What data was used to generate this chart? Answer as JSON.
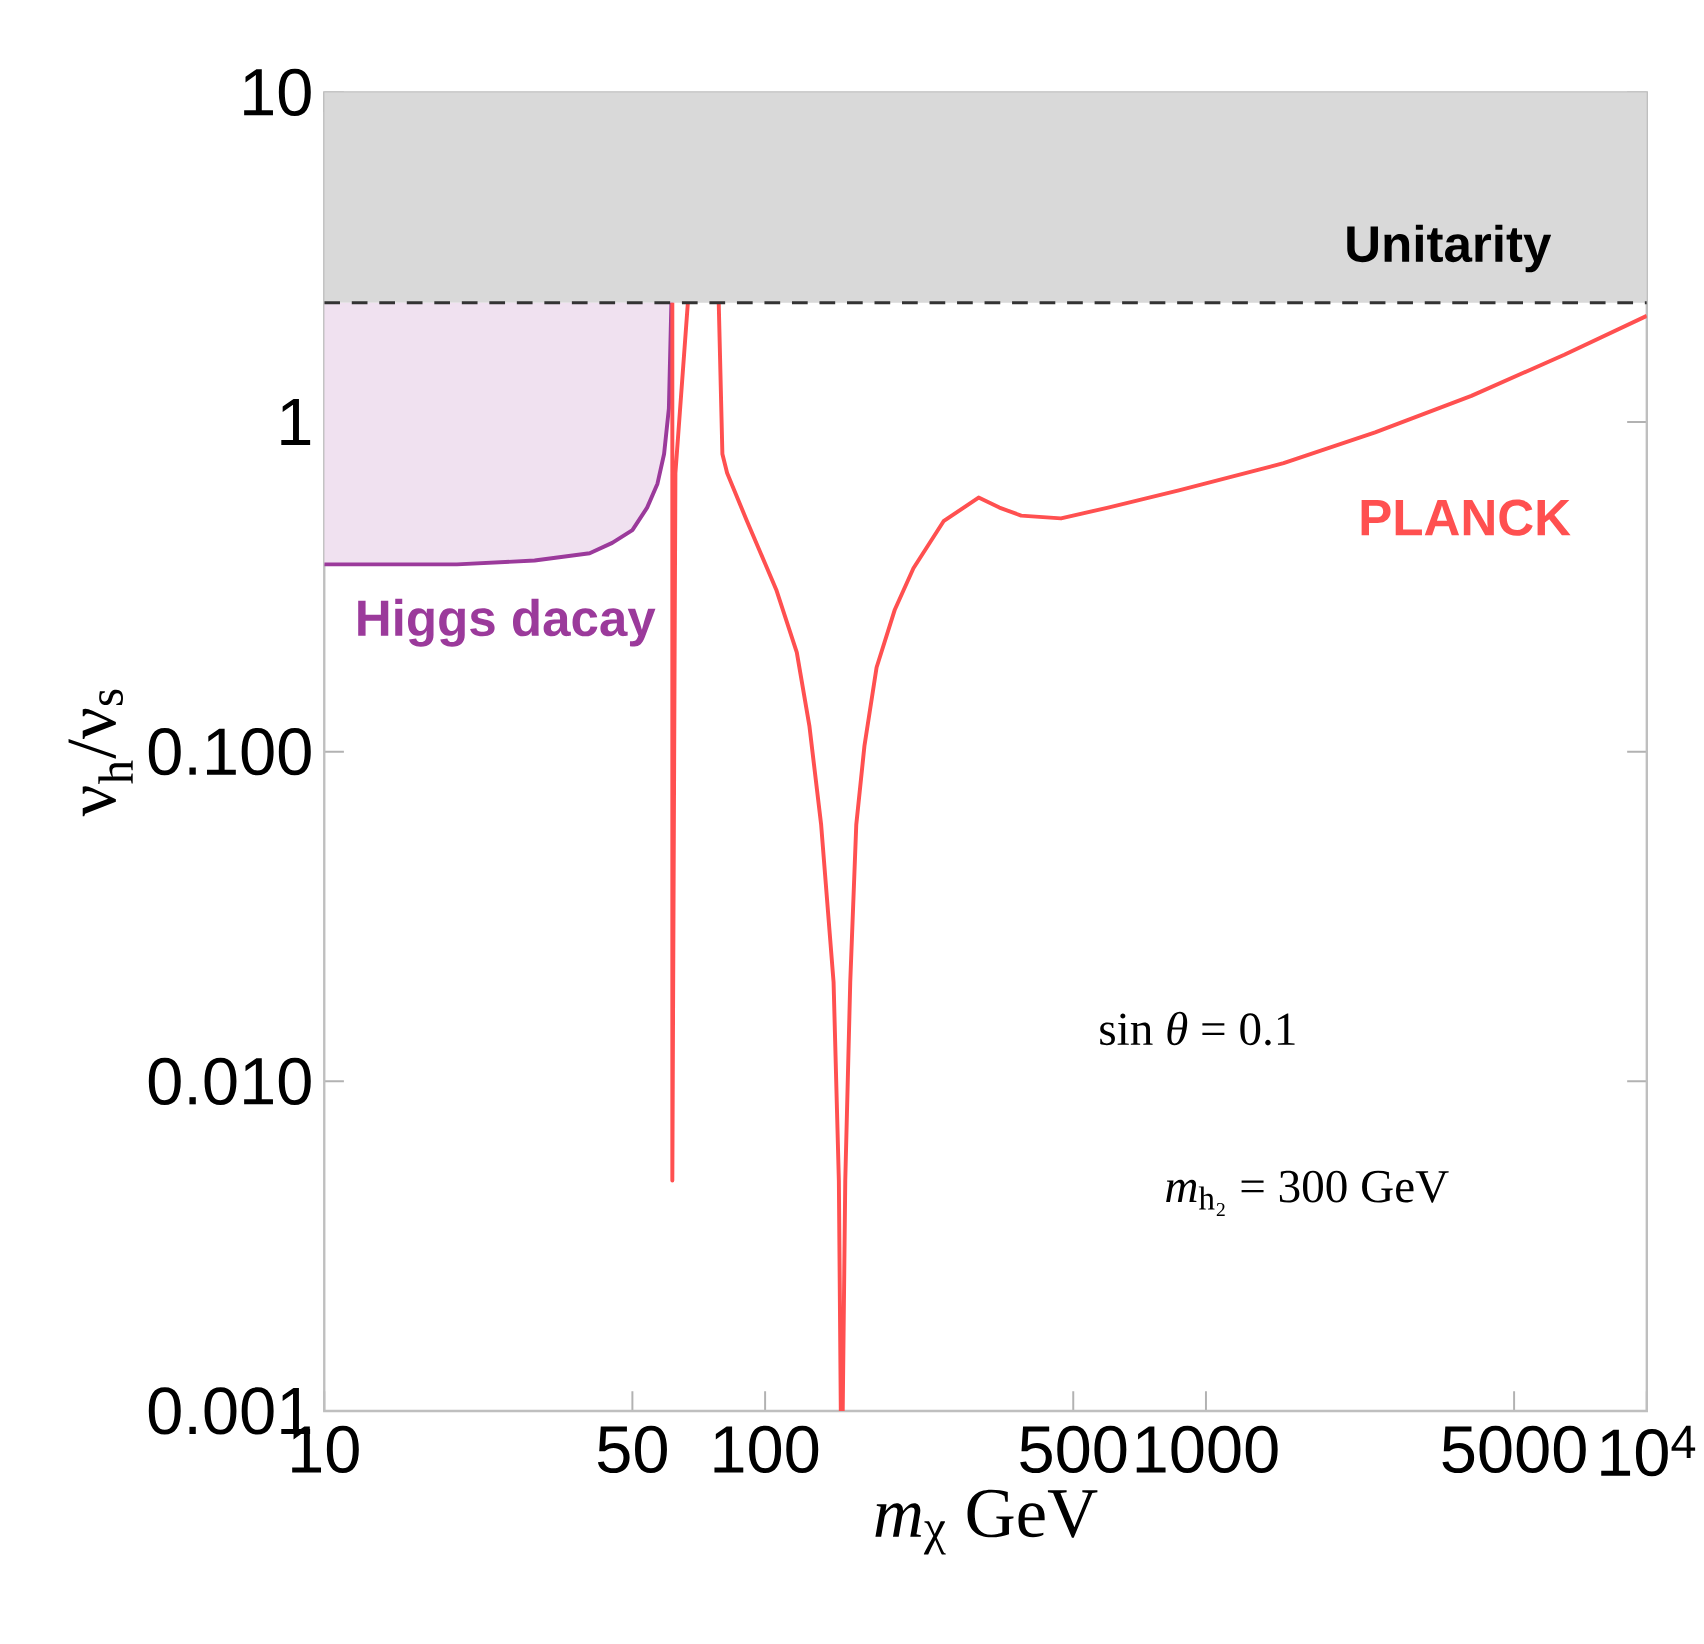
{
  "chart_data": {
    "type": "line",
    "xlabel": "*m*$_{χ}$ GeV",
    "ylabel": "ν$_{h}$/ν$_{s}$",
    "log": "xy",
    "xlim": [
      10,
      10000
    ],
    "ylim": [
      0.001,
      10
    ],
    "xticks": [
      10,
      50,
      100,
      500,
      1000,
      5000,
      {
        "value": 10000,
        "label": "10$^{4}$"
      }
    ],
    "yticks": [
      {
        "value": 0.001,
        "label": "0.001"
      },
      {
        "value": 0.01,
        "label": "0.010"
      },
      {
        "value": 0.1,
        "label": "0.100"
      },
      1,
      10
    ],
    "series": [
      {
        "name": "Higgs dacay",
        "color": "#9b3a9b",
        "x": [
          10,
          20,
          30,
          40,
          45,
          50,
          54,
          57,
          59,
          60.5,
          61.3
        ],
        "values": [
          0.37,
          0.37,
          0.38,
          0.4,
          0.43,
          0.47,
          0.55,
          0.65,
          0.8,
          1.1,
          2.3
        ],
        "lower": [
          0.37,
          0.37,
          0.38,
          0.4,
          0.43,
          0.47,
          0.55,
          0.65,
          0.8,
          1.1,
          2.3
        ],
        "upper": [
          2.3,
          2.3,
          2.3,
          2.3,
          2.3,
          2.3,
          2.3,
          2.3,
          2.3,
          2.3,
          2.3
        ]
      },
      {
        "name": "PLANCK",
        "color": "#ff5050",
        "x": [
          61.6,
          61.6,
          62.6,
          66.8,
          70,
          78.5,
          80,
          82,
          91,
          106,
          118,
          126,
          134,
          143,
          147,
          148.5,
          150,
          152,
          156,
          161,
          168,
          179,
          197,
          217,
          254,
          305,
          340,
          381,
          469,
          600,
          868,
          1500,
          2420,
          4000,
          6500,
          10000
        ],
        "values": [
          2.3,
          0.005,
          0.7,
          2.3,
          null,
          2.3,
          0.8,
          0.7,
          0.5,
          0.31,
          0.2,
          0.12,
          0.06,
          0.02,
          0.005,
          0.001,
          0.001,
          0.005,
          0.02,
          0.06,
          0.104,
          0.18,
          0.27,
          0.36,
          0.5,
          0.59,
          0.55,
          0.52,
          0.51,
          0.55,
          0.62,
          0.75,
          0.93,
          1.2,
          1.6,
          2.1
        ]
      }
    ],
    "bands": [
      {
        "axis": "y",
        "from": 2.3,
        "to": 10,
        "label": "Unitarity",
        "color": "#d9d9d9"
      }
    ],
    "ref_lines": [
      {
        "axis": "y",
        "value": 2.3,
        "line_style": "dashed",
        "color": "#333333"
      }
    ],
    "annotations": [
      "sin *θ* = 0.1",
      "*m*$_{h₂}$ = 300 GeV"
    ]
  }
}
